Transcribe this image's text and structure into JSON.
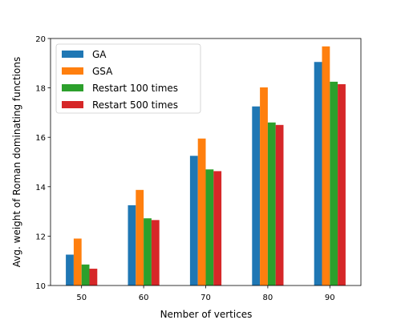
{
  "chart_data": {
    "type": "bar",
    "title": "",
    "xlabel": "Nember of vertices",
    "ylabel": "Avg. weight of Roman dominating functions",
    "categories": [
      "50",
      "60",
      "70",
      "80",
      "90"
    ],
    "ylim": [
      10,
      20
    ],
    "yticks": [
      "10",
      "12",
      "14",
      "16",
      "18",
      "20"
    ],
    "grid": false,
    "legend_position": "top-left",
    "series": [
      {
        "name": "GA",
        "color": "#1f77b4",
        "values": [
          11.25,
          13.25,
          15.25,
          17.25,
          19.05
        ]
      },
      {
        "name": "GSA",
        "color": "#ff7f0e",
        "values": [
          11.9,
          13.87,
          15.95,
          18.02,
          19.68
        ]
      },
      {
        "name": "Restart 100 times",
        "color": "#2ca02c",
        "values": [
          10.85,
          12.72,
          14.7,
          16.6,
          18.25
        ]
      },
      {
        "name": "Restart 500 times",
        "color": "#d62728",
        "values": [
          10.68,
          12.65,
          14.63,
          16.5,
          18.15
        ]
      }
    ]
  }
}
